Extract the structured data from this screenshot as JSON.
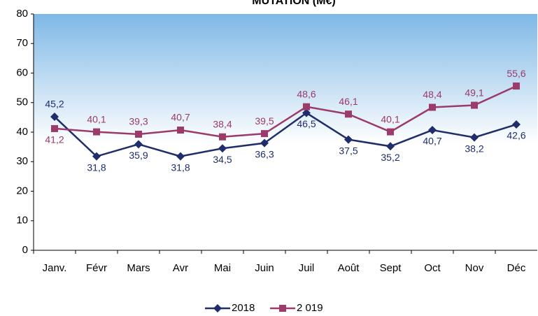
{
  "chart_data": {
    "type": "line",
    "title": "MUTATION (M€)",
    "categories": [
      "Janv.",
      "Févr",
      "Mars",
      "Avr",
      "Mai",
      "Juin",
      "Juil",
      "Août",
      "Sept",
      "Oct",
      "Nov",
      "Déc"
    ],
    "series": [
      {
        "name": "2018",
        "color": "#1f2d6b",
        "values": [
          45.2,
          31.8,
          35.9,
          31.8,
          34.5,
          36.3,
          46.5,
          37.5,
          35.2,
          40.7,
          38.2,
          42.6
        ],
        "value_labels": [
          "45,2",
          "31,8",
          "35,9",
          "31,8",
          "34,5",
          "36,3",
          "46,5",
          "37,5",
          "35,2",
          "40,7",
          "38,2",
          "42,6"
        ]
      },
      {
        "name": "2 019",
        "color": "#9b3a6b",
        "values": [
          41.2,
          40.1,
          39.3,
          40.7,
          38.4,
          39.5,
          48.6,
          46.1,
          40.1,
          48.4,
          49.1,
          55.6
        ],
        "value_labels": [
          "41,2",
          "40,1",
          "39,3",
          "40,7",
          "38,4",
          "39,5",
          "48,6",
          "46,1",
          "40,1",
          "48,4",
          "49,1",
          "55,6"
        ]
      }
    ],
    "ylim": [
      0,
      80
    ],
    "yticks": [
      0,
      10,
      20,
      30,
      40,
      50,
      60,
      70,
      80
    ],
    "grid": false,
    "legend": "bottom"
  }
}
